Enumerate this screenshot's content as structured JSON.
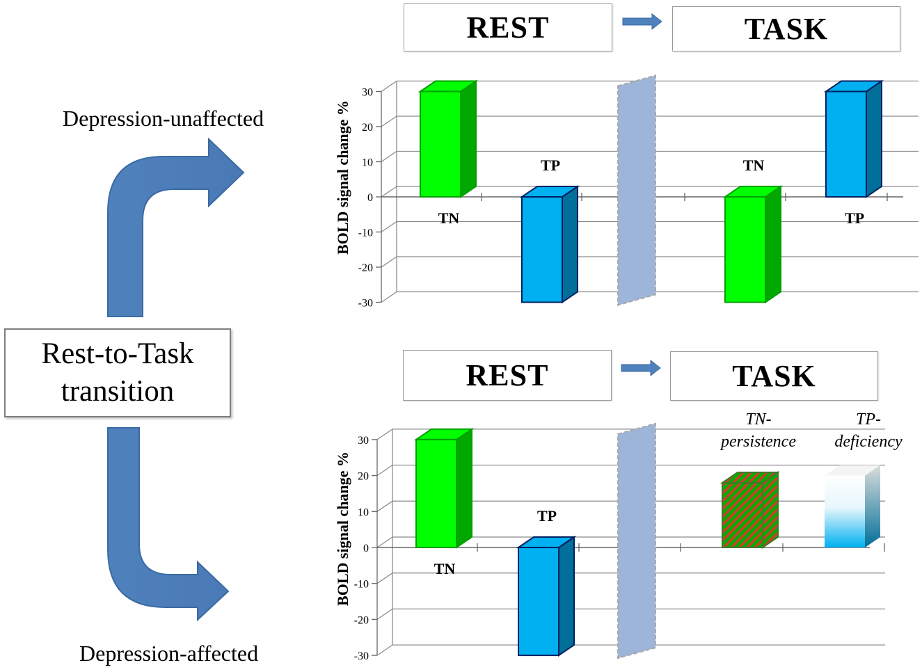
{
  "left": {
    "label_unaffected": "Depression-unaffected",
    "label_affected": "Depression-affected",
    "transition_line1": "Rest-to-Task",
    "transition_line2": "transition"
  },
  "colors": {
    "arrow": "#4f81bd",
    "green_front": "#00ff00",
    "green_side": "#00a800",
    "blue_front": "#00b0f0",
    "blue_side": "#006f99",
    "separator": "#9db5d9"
  },
  "top_panel": {
    "rest_label": "REST",
    "task_label": "TASK",
    "chart_data": {
      "type": "bar",
      "ylabel": "BOLD signal change %",
      "ylim": [
        -30,
        30
      ],
      "yticks": [
        "30",
        "20",
        "10",
        "0",
        "-10",
        "-20",
        "-30"
      ],
      "bars": [
        {
          "phase": "REST",
          "name": "TN",
          "value": 30
        },
        {
          "phase": "REST",
          "name": "TP",
          "value": -30
        },
        {
          "phase": "TASK",
          "name": "TN",
          "value": -30
        },
        {
          "phase": "TASK",
          "name": "TP",
          "value": 30
        }
      ]
    }
  },
  "bottom_panel": {
    "rest_label": "REST",
    "task_label": "TASK",
    "chart_data": {
      "type": "bar",
      "ylabel": "BOLD signal change %",
      "ylim": [
        -30,
        30
      ],
      "yticks": [
        "30",
        "20",
        "10",
        "0",
        "-10",
        "-20",
        "-30"
      ],
      "bars": [
        {
          "phase": "REST",
          "name": "TN",
          "value": 30
        },
        {
          "phase": "REST",
          "name": "TP",
          "value": -30
        },
        {
          "phase": "TASK",
          "name": "TN-persistence",
          "value": 18
        },
        {
          "phase": "TASK",
          "name": "TP-deficiency",
          "value": 20
        }
      ]
    },
    "annotation_tn_line1": "TN-",
    "annotation_tn_line2": "persistence",
    "annotation_tp_line1": "TP-",
    "annotation_tp_line2": "deficiency"
  }
}
